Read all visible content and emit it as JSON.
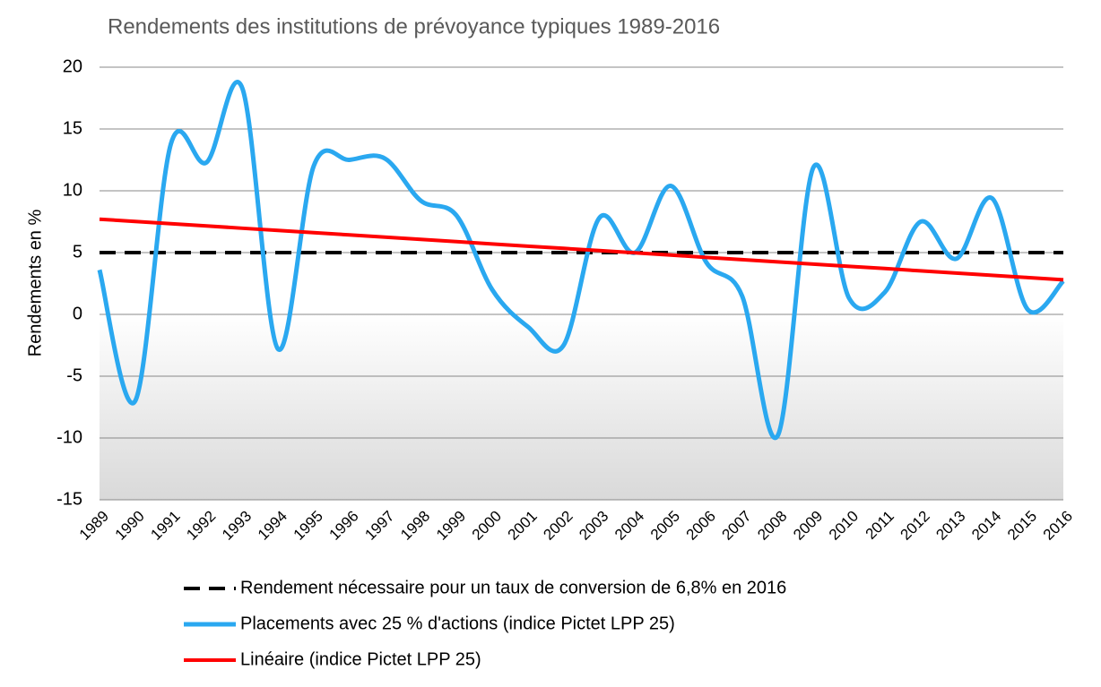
{
  "chart_data": {
    "type": "line",
    "title": "Rendements des institutions de prévoyance typiques 1989-2016",
    "y_label": "Rendements en %",
    "categories": [
      "1989",
      "1990",
      "1991",
      "1992",
      "1993",
      "1994",
      "1995",
      "1996",
      "1997",
      "1998",
      "1999",
      "2000",
      "2001",
      "2002",
      "2003",
      "2004",
      "2005",
      "2006",
      "2007",
      "2008",
      "2009",
      "2010",
      "2011",
      "2012",
      "2013",
      "2014",
      "2015",
      "2016"
    ],
    "series": [
      {
        "name": "Rendement nécessaire pour un taux de conversion de 6,8% en 2016",
        "color": "#000000",
        "dashed": true,
        "values": [
          5,
          5,
          5,
          5,
          5,
          5,
          5,
          5,
          5,
          5,
          5,
          5,
          5,
          5,
          5,
          5,
          5,
          5,
          5,
          5,
          5,
          5,
          5,
          5,
          5,
          5,
          5,
          5
        ]
      },
      {
        "name": "Placements avec 25 % d'actions (indice Pictet LPP 25)",
        "color": "#2aa8f0",
        "smooth": true,
        "values": [
          3.6,
          -7.0,
          13.8,
          12.3,
          18.3,
          -2.8,
          12.0,
          12.5,
          12.6,
          9.2,
          8.0,
          2.0,
          -1.0,
          -2.5,
          7.8,
          5.0,
          10.4,
          4.2,
          1.5,
          -9.8,
          11.9,
          1.3,
          1.8,
          7.5,
          4.5,
          9.4,
          0.4,
          2.7
        ]
      },
      {
        "name": "Linéaire (indice Pictet LPP 25)",
        "color": "#ff0000",
        "values": [
          7.7,
          7.52,
          7.34,
          7.16,
          6.97,
          6.79,
          6.61,
          6.43,
          6.25,
          6.07,
          5.89,
          5.7,
          5.52,
          5.34,
          5.16,
          4.98,
          4.8,
          4.61,
          4.43,
          4.25,
          4.07,
          3.89,
          3.71,
          3.52,
          3.34,
          3.16,
          2.98,
          2.8
        ]
      }
    ],
    "ylim": [
      -15,
      20
    ],
    "yticks": [
      -15,
      -10,
      -5,
      0,
      5,
      10,
      15,
      20
    ],
    "grid": true
  }
}
